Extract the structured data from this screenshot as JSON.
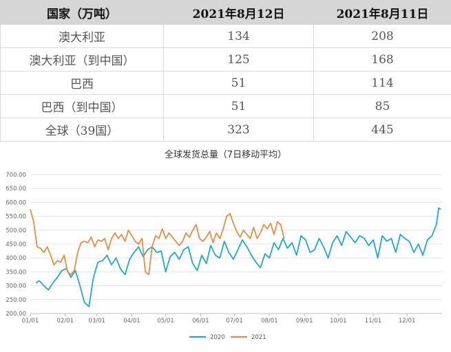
{
  "table": {
    "headers": [
      "国家（万吨）",
      "2021年8月12日",
      "2021年8月11日"
    ],
    "rows": [
      [
        "澳大利亚",
        "134",
        "208"
      ],
      [
        "澳大利亚（到中国）",
        "125",
        "168"
      ],
      [
        "巴西",
        "51",
        "114"
      ],
      [
        "巴西（到中国）",
        "51",
        "85"
      ],
      [
        "全球（39国）",
        "323",
        "445"
      ]
    ]
  },
  "chart_data": {
    "type": "line",
    "title": "全球发货总量（7日移动平均）",
    "ylim": [
      200,
      700
    ],
    "yticks": [
      "200.00",
      "250.00",
      "300.00",
      "350.00",
      "400.00",
      "450.00",
      "500.00",
      "550.00",
      "600.00",
      "650.00",
      "700.00"
    ],
    "xticks": [
      "01/01",
      "02/01",
      "03/01",
      "04/01",
      "05/01",
      "06/01",
      "07/01",
      "08/01",
      "09/01",
      "10/01",
      "11/01",
      "12/01"
    ],
    "xdomain_days": 365,
    "grid": true,
    "legend_position": "bottom",
    "series": [
      {
        "name": "2020",
        "color": "#1aa7dc",
        "x": [
          5,
          8,
          12,
          16,
          20,
          24,
          28,
          32,
          36,
          40,
          44,
          48,
          52,
          56,
          60,
          64,
          68,
          72,
          76,
          80,
          84,
          88,
          92,
          96,
          100,
          104,
          108,
          112,
          116,
          120,
          124,
          128,
          132,
          136,
          140,
          144,
          148,
          152,
          156,
          160,
          164,
          168,
          172,
          176,
          180,
          184,
          188,
          192,
          196,
          200,
          204,
          208,
          212,
          216,
          220,
          224,
          228,
          232,
          236,
          240,
          244,
          248,
          252,
          256,
          260,
          264,
          268,
          272,
          276,
          280,
          284,
          288,
          292,
          296,
          300,
          304,
          308,
          312,
          316,
          320,
          324,
          328,
          332,
          336,
          340,
          344,
          348,
          352,
          356,
          360,
          362,
          364
        ],
        "values": [
          310,
          318,
          300,
          285,
          310,
          330,
          355,
          362,
          330,
          355,
          300,
          240,
          225,
          330,
          385,
          390,
          410,
          375,
          400,
          360,
          340,
          395,
          420,
          440,
          405,
          430,
          440,
          420,
          425,
          350,
          405,
          420,
          395,
          430,
          440,
          380,
          355,
          410,
          380,
          445,
          410,
          400,
          460,
          420,
          395,
          430,
          465,
          440,
          410,
          385,
          365,
          415,
          400,
          455,
          430,
          470,
          435,
          455,
          410,
          480,
          465,
          420,
          430,
          470,
          440,
          400,
          455,
          480,
          445,
          495,
          475,
          455,
          480,
          470,
          445,
          465,
          400,
          480,
          460,
          470,
          420,
          485,
          470,
          460,
          420,
          450,
          410,
          465,
          480,
          520,
          580,
          575
        ]
      },
      {
        "name": "2021",
        "color": "#ed8a3e",
        "x": [
          0,
          3,
          6,
          9,
          12,
          15,
          18,
          21,
          24,
          27,
          30,
          33,
          36,
          39,
          42,
          45,
          48,
          51,
          54,
          57,
          60,
          63,
          66,
          69,
          72,
          75,
          78,
          81,
          84,
          87,
          90,
          93,
          96,
          99,
          102,
          105,
          108,
          111,
          114,
          117,
          120,
          123,
          126,
          129,
          132,
          135,
          138,
          141,
          144,
          147,
          150,
          153,
          156,
          159,
          162,
          165,
          168,
          171,
          174,
          177,
          180,
          183,
          186,
          189,
          192,
          195,
          198,
          201,
          204,
          207,
          210,
          213,
          216,
          219,
          222,
          225
        ],
        "values": [
          575,
          530,
          440,
          435,
          420,
          440,
          410,
          375,
          390,
          385,
          410,
          350,
          340,
          355,
          420,
          455,
          460,
          455,
          475,
          440,
          465,
          460,
          470,
          430,
          470,
          490,
          470,
          485,
          460,
          500,
          480,
          460,
          450,
          470,
          350,
          340,
          440,
          480,
          470,
          505,
          470,
          490,
          475,
          460,
          445,
          460,
          490,
          475,
          500,
          520,
          470,
          460,
          475,
          495,
          455,
          490,
          470,
          505,
          550,
          560,
          525,
          495,
          475,
          500,
          485,
          470,
          510,
          470,
          490,
          520,
          505,
          525,
          485,
          530,
          520,
          470
        ]
      }
    ]
  }
}
